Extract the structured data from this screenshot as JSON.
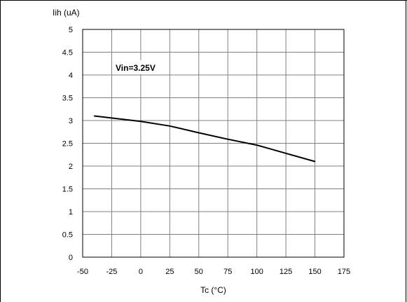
{
  "chart_data": {
    "type": "line",
    "ylabel": "Iih (uA)",
    "xlabel": "Tc (°C)",
    "annotation": "Vin=3.25V",
    "xlim": [
      -50,
      175
    ],
    "ylim": [
      0,
      5
    ],
    "x_ticks": [
      "-50",
      "-25",
      "0",
      "25",
      "50",
      "75",
      "100",
      "125",
      "150",
      "175"
    ],
    "y_ticks": [
      "0",
      "0.5",
      "1",
      "1.5",
      "2",
      "2.5",
      "3",
      "3.5",
      "4",
      "4.5",
      "5"
    ],
    "grid": true,
    "series": [
      {
        "x": [
          -40,
          0,
          25,
          50,
          75,
          100,
          125,
          150
        ],
        "y": [
          3.1,
          2.98,
          2.88,
          2.73,
          2.59,
          2.46,
          2.28,
          2.1
        ],
        "color": "#000000"
      }
    ]
  }
}
